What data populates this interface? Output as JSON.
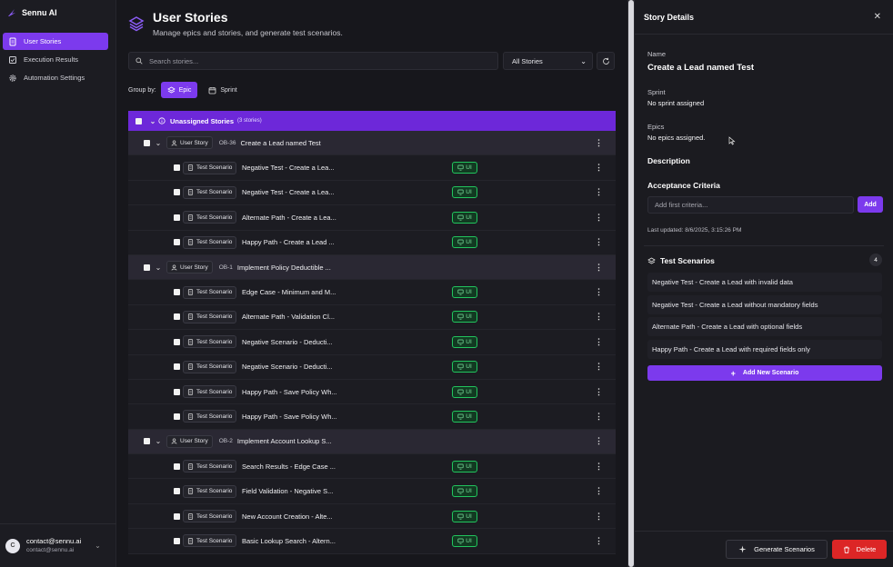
{
  "app": {
    "name": "Sennu AI",
    "accent": "#7c3aed"
  },
  "sidebar": {
    "items": [
      {
        "label": "User Stories",
        "icon": "document-icon",
        "active": true
      },
      {
        "label": "Execution Results",
        "icon": "check-square-icon",
        "active": false
      },
      {
        "label": "Automation Settings",
        "icon": "gear-icon",
        "active": false
      }
    ],
    "user": {
      "initial": "C",
      "name": "contact@sennu.ai",
      "email": "contact@sennu.ai"
    }
  },
  "header": {
    "title": "User Stories",
    "subtitle": "Manage epics and stories, and generate test scenarios."
  },
  "toolbar": {
    "search_placeholder": "Search stories...",
    "filter_value": "All Stories",
    "group_by_label": "Group by:",
    "group_epic": "Epic",
    "group_sprint": "Sprint"
  },
  "tree": {
    "group": {
      "label": "Unassigned Stories",
      "count": "(3 stories)"
    },
    "story_tag": "User Story",
    "scenario_tag": "Test Scenario",
    "badge": "UI",
    "stories": [
      {
        "id": "OB-36",
        "title": "Create a Lead named Test",
        "scenarios": [
          "Negative Test - Create a Lea...",
          "Negative Test - Create a Lea...",
          "Alternate Path - Create a Lea...",
          "Happy Path - Create a Lead ..."
        ]
      },
      {
        "id": "OB-1",
        "title": "Implement Policy Deductible ...",
        "scenarios": [
          "Edge Case - Minimum and M...",
          "Alternate Path - Validation Cl...",
          "Negative Scenario - Deducti...",
          "Negative Scenario - Deducti...",
          "Happy Path - Save Policy Wh...",
          "Happy Path - Save Policy Wh..."
        ]
      },
      {
        "id": "OB-2",
        "title": "Implement Account Lookup S...",
        "scenarios": [
          "Search Results - Edge Case ...",
          "Field Validation - Negative S...",
          "New Account Creation - Alte...",
          "Basic Lookup Search - Altern..."
        ]
      }
    ]
  },
  "panel": {
    "title": "Story Details",
    "name_label": "Name",
    "name_value": "Create a Lead named Test",
    "sprint_label": "Sprint",
    "sprint_value": "No sprint assigned",
    "epics_label": "Epics",
    "epics_value": "No epics assigned.",
    "description_label": "Description",
    "criteria_label": "Acceptance Criteria",
    "criteria_placeholder": "Add first criteria...",
    "add_label": "Add",
    "last_updated": "Last updated: 8/6/2025, 3:15:26 PM",
    "scenarios_label": "Test Scenarios",
    "scenarios_count": "4",
    "scenarios": [
      "Negative Test - Create a Lead with invalid data",
      "Negative Test - Create a Lead without mandatory fields",
      "Alternate Path - Create a Lead with optional fields",
      "Happy Path - Create a Lead with required fields only"
    ],
    "add_scenario_label": "Add New Scenario",
    "generate_label": "Generate Scenarios",
    "delete_label": "Delete"
  }
}
